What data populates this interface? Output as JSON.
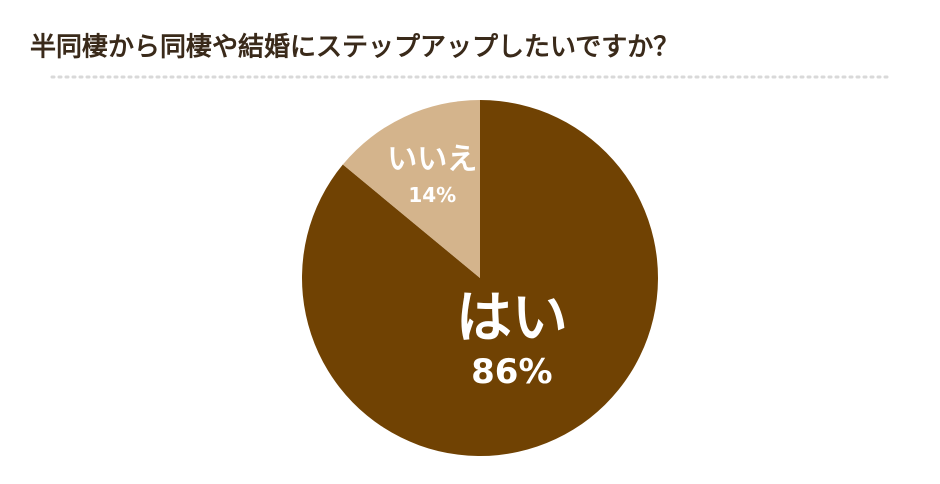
{
  "chart_data": {
    "type": "pie",
    "title": "半同棲から同棲や結婚にステップアップしたいですか？",
    "categories": [
      "はい",
      "いいえ"
    ],
    "values": [
      86,
      14
    ],
    "value_labels": [
      "86%",
      "14%"
    ],
    "colors": [
      "#704203",
      "#d4b48c"
    ]
  }
}
